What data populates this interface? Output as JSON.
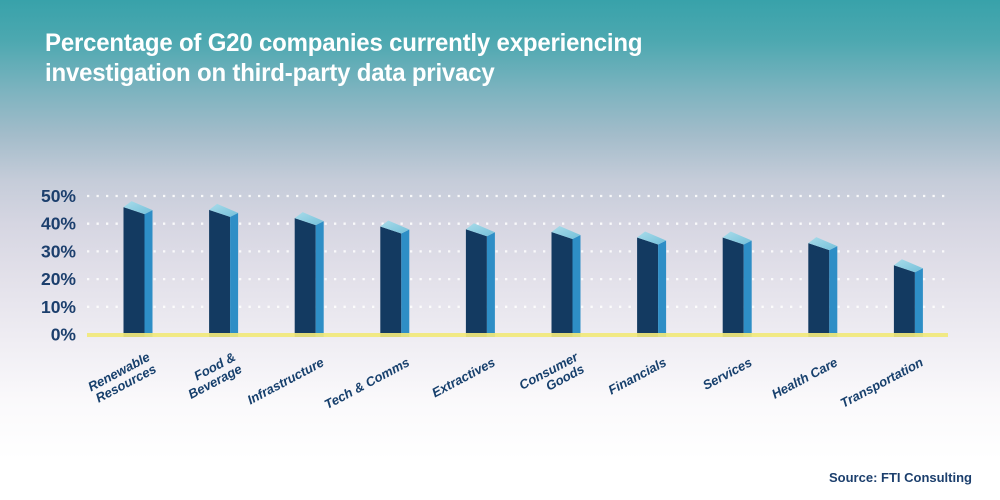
{
  "header": {
    "title_line1": "Percentage of G20 companies currently experiencing",
    "title_line2": "investigation on third-party data privacy"
  },
  "footer": {
    "source": "Source: FTI Consulting"
  },
  "colors": {
    "background_top": "#38a2aa",
    "background_bottom": "#ffffff",
    "title_text": "#ffffff",
    "axis_text": "#1c3f6d",
    "category_text": "#17406d",
    "bar_front": "#133a61",
    "bar_side": "#2e8ec6",
    "bar_top": "#7fc4dd",
    "bar_top_highlight": "#a9dcea",
    "baseline_yellow": "#f1e87b",
    "grid_dot": "#ffffff"
  },
  "chart_data": {
    "type": "bar",
    "style": "3d-extruded-columns",
    "title": "Percentage of G20 companies currently experiencing investigation on third-party data privacy",
    "categories": [
      "Renewable Resources",
      "Food & Beverage",
      "Infrastructure",
      "Tech & Comms",
      "Extractives",
      "Consumer Goods",
      "Financials",
      "Services",
      "Health Care",
      "Transportation"
    ],
    "category_lines": [
      [
        "Renewable",
        "Resources"
      ],
      [
        "Food &",
        "Beverage"
      ],
      [
        "Infrastructure"
      ],
      [
        "Tech & Comms"
      ],
      [
        "Extractives"
      ],
      [
        "Consumer",
        "Goods"
      ],
      [
        "Financials"
      ],
      [
        "Services"
      ],
      [
        "Health Care"
      ],
      [
        "Transportation"
      ]
    ],
    "values": [
      46,
      45,
      42,
      39,
      38,
      37,
      35,
      35,
      33,
      25
    ],
    "unit": "%",
    "xlabel": "",
    "ylabel": "",
    "ylim": [
      0,
      50
    ],
    "ytick_step": 10,
    "y_tick_labels": [
      "0%",
      "10%",
      "20%",
      "30%",
      "40%",
      "50%"
    ],
    "grid": "dotted-horizontal",
    "legend": "none",
    "source": "Source: FTI Consulting"
  }
}
